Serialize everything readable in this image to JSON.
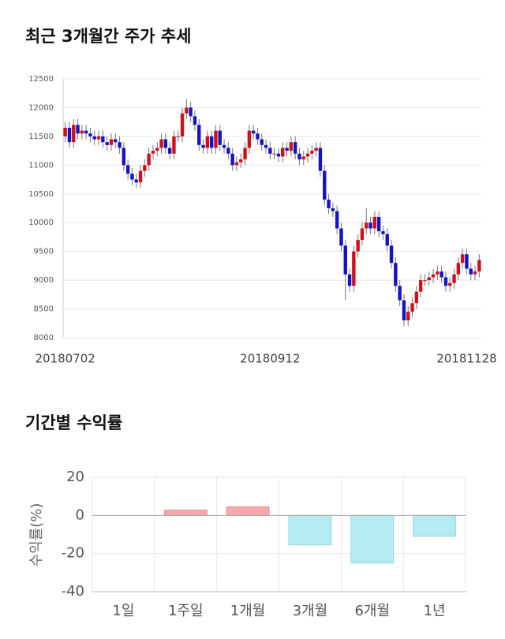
{
  "chart_data": [
    {
      "type": "candlestick",
      "title": "최근 3개월간 주가 추세",
      "categories": [
        "20180702",
        null,
        null,
        null,
        null,
        null,
        null,
        null,
        null,
        null,
        null,
        null,
        null,
        null,
        null,
        null,
        null,
        null,
        null,
        null,
        null,
        null,
        null,
        null,
        null,
        null,
        null,
        null,
        null,
        null,
        null,
        null,
        null,
        null,
        null,
        null,
        null,
        null,
        null,
        null,
        null,
        null,
        null,
        null,
        null,
        null,
        null,
        null,
        null,
        "20180912",
        null,
        null,
        null,
        null,
        null,
        null,
        null,
        null,
        null,
        null,
        null,
        null,
        null,
        null,
        null,
        null,
        null,
        null,
        null,
        null,
        null,
        null,
        null,
        null,
        null,
        null,
        null,
        null,
        null,
        null,
        null,
        null,
        null,
        null,
        null,
        null,
        null,
        null,
        null,
        null,
        null,
        null,
        null,
        null,
        null,
        null,
        "20181128",
        null,
        null,
        null
      ],
      "open": [
        11500,
        11650,
        11400,
        11700,
        11550,
        11600,
        11550,
        11500,
        11450,
        11500,
        11400,
        11350,
        11450,
        11400,
        11300,
        11000,
        10850,
        10750,
        10700,
        10900,
        11000,
        11200,
        11250,
        11300,
        11450,
        11300,
        11200,
        11500,
        11500,
        11900,
        12000,
        11850,
        11700,
        11350,
        11300,
        11500,
        11300,
        11600,
        11350,
        11300,
        11200,
        11000,
        11050,
        11100,
        11300,
        11600,
        11550,
        11450,
        11350,
        11300,
        11200,
        11200,
        11150,
        11300,
        11250,
        11400,
        11200,
        11100,
        11150,
        11200,
        11250,
        11300,
        10900,
        10400,
        10250,
        10200,
        9900,
        9600,
        9100,
        8900,
        9500,
        9700,
        9900,
        10000,
        9900,
        10100,
        9850,
        9800,
        9600,
        9300,
        8900,
        8650,
        8300,
        8450,
        8600,
        8800,
        9000,
        9000,
        9050,
        9100,
        9150,
        9050,
        8900,
        8950,
        9100,
        9300,
        9450,
        9200,
        9100,
        9150
      ],
      "high": [
        11750,
        11750,
        11800,
        11800,
        11700,
        11700,
        11650,
        11600,
        11600,
        11600,
        11500,
        11550,
        11550,
        11500,
        11400,
        11100,
        10950,
        10850,
        11000,
        11100,
        11300,
        11350,
        11400,
        11550,
        11550,
        11400,
        11600,
        11600,
        12000,
        12150,
        12100,
        11950,
        11800,
        11450,
        11600,
        11600,
        11700,
        11700,
        11450,
        11400,
        11300,
        11150,
        11200,
        11400,
        11700,
        11700,
        11650,
        11550,
        11450,
        11400,
        11300,
        11300,
        11400,
        11400,
        11500,
        11500,
        11300,
        11250,
        11300,
        11350,
        11400,
        11400,
        11000,
        10500,
        10350,
        10300,
        10000,
        9700,
        9200,
        9600,
        9800,
        10000,
        10250,
        10100,
        10200,
        10200,
        9950,
        9900,
        9700,
        9400,
        9000,
        8750,
        8550,
        8700,
        8900,
        9100,
        9100,
        9150,
        9200,
        9250,
        9250,
        9150,
        9050,
        9200,
        9400,
        9550,
        9550,
        9300,
        9250,
        9450
      ],
      "low": [
        11400,
        11300,
        11300,
        11450,
        11450,
        11450,
        11400,
        11350,
        11350,
        11300,
        11250,
        11250,
        11300,
        11200,
        10900,
        10750,
        10650,
        10600,
        10600,
        10800,
        10900,
        11100,
        11150,
        11200,
        11200,
        11100,
        11100,
        11400,
        11400,
        11800,
        11750,
        11600,
        11250,
        11200,
        11200,
        11200,
        11200,
        11250,
        11200,
        11100,
        10900,
        10900,
        10950,
        11000,
        11200,
        11450,
        11350,
        11250,
        11200,
        11100,
        11100,
        11050,
        11050,
        11150,
        11150,
        11100,
        11000,
        11000,
        11050,
        11100,
        11150,
        10800,
        10300,
        10150,
        10100,
        9800,
        9500,
        8650,
        8800,
        8800,
        9400,
        9600,
        9800,
        9800,
        9800,
        9750,
        9700,
        9500,
        9200,
        8800,
        8550,
        8200,
        8200,
        8350,
        8500,
        8700,
        8900,
        8900,
        8950,
        9000,
        8950,
        8800,
        8800,
        8850,
        9000,
        9200,
        9100,
        9000,
        9000,
        9050
      ],
      "close": [
        11650,
        11400,
        11700,
        11550,
        11600,
        11550,
        11500,
        11450,
        11500,
        11400,
        11350,
        11450,
        11400,
        11300,
        11000,
        10850,
        10750,
        10700,
        10900,
        11000,
        11200,
        11250,
        11300,
        11450,
        11300,
        11200,
        11500,
        11500,
        11900,
        12000,
        11850,
        11700,
        11350,
        11300,
        11500,
        11300,
        11600,
        11350,
        11300,
        11200,
        11000,
        11050,
        11100,
        11300,
        11600,
        11550,
        11450,
        11350,
        11300,
        11200,
        11200,
        11150,
        11300,
        11250,
        11400,
        11200,
        11100,
        11150,
        11200,
        11250,
        11300,
        10900,
        10400,
        10250,
        10200,
        9900,
        9600,
        9100,
        8900,
        9500,
        9700,
        9900,
        10000,
        9900,
        10100,
        9850,
        9800,
        9600,
        9300,
        8900,
        8650,
        8300,
        8450,
        8600,
        8800,
        9000,
        9000,
        9050,
        9100,
        9150,
        9050,
        8900,
        8950,
        9100,
        9300,
        9450,
        9200,
        9100,
        9150,
        9350
      ],
      "up_color": "#d0101c",
      "down_color": "#1414c4",
      "ylim": [
        8000,
        12500
      ],
      "yticks": [
        8000,
        8500,
        9000,
        9500,
        10000,
        10500,
        11000,
        11500,
        12000,
        12500
      ],
      "grid": true
    },
    {
      "type": "bar",
      "title": "기간별 수익률",
      "ylabel": "수익률(%)",
      "categories": [
        "1일",
        "1주일",
        "1개월",
        "3개월",
        "6개월",
        "1년"
      ],
      "values": [
        0,
        2.8,
        4.5,
        -15.5,
        -25,
        -11
      ],
      "positive_color": "#f8a8ab",
      "negative_color": "#b4ebf3",
      "ylim": [
        -40,
        20
      ],
      "yticks": [
        20,
        0,
        -20,
        -40
      ],
      "grid": true
    }
  ]
}
